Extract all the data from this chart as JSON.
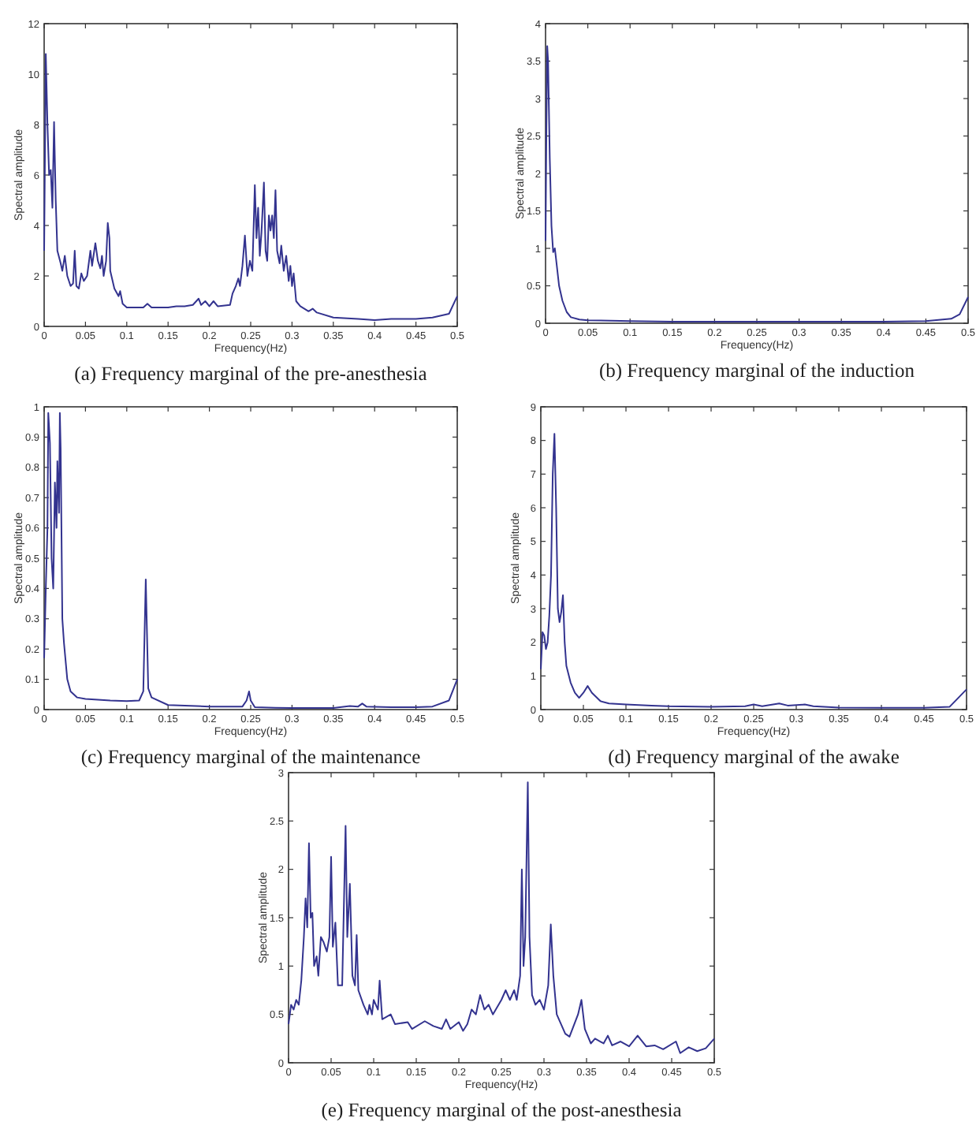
{
  "chart_data": [
    {
      "type": "line",
      "title": "(a) Frequency marginal of the pre-anesthesia",
      "xlabel": "Frequency(Hz)",
      "ylabel": "Spectral amplitude",
      "xlim": [
        0,
        0.5
      ],
      "xticks": [
        0,
        0.05,
        0.1,
        0.15,
        0.2,
        0.25,
        0.3,
        0.35,
        0.4,
        0.45,
        0.5
      ],
      "ylim": [
        0,
        12
      ],
      "yticks": [
        0,
        2,
        4,
        6,
        8,
        10,
        12
      ],
      "grid": false,
      "line_style": "solid",
      "color": "#33338f",
      "x": [
        0,
        0.002,
        0.004,
        0.006,
        0.008,
        0.01,
        0.012,
        0.014,
        0.016,
        0.02,
        0.022,
        0.025,
        0.028,
        0.032,
        0.035,
        0.037,
        0.039,
        0.042,
        0.045,
        0.048,
        0.052,
        0.056,
        0.058,
        0.062,
        0.065,
        0.068,
        0.07,
        0.072,
        0.075,
        0.077,
        0.079,
        0.08,
        0.085,
        0.09,
        0.092,
        0.095,
        0.1,
        0.12,
        0.125,
        0.13,
        0.15,
        0.16,
        0.17,
        0.18,
        0.187,
        0.19,
        0.195,
        0.2,
        0.205,
        0.21,
        0.225,
        0.228,
        0.232,
        0.235,
        0.237,
        0.24,
        0.243,
        0.246,
        0.249,
        0.252,
        0.255,
        0.257,
        0.259,
        0.261,
        0.263,
        0.266,
        0.268,
        0.27,
        0.272,
        0.274,
        0.276,
        0.278,
        0.28,
        0.282,
        0.285,
        0.287,
        0.29,
        0.293,
        0.296,
        0.298,
        0.3,
        0.302,
        0.305,
        0.31,
        0.32,
        0.325,
        0.33,
        0.35,
        0.38,
        0.4,
        0.42,
        0.45,
        0.47,
        0.49,
        0.5
      ],
      "values": [
        3,
        10.8,
        8,
        6,
        6.2,
        4.7,
        8.1,
        5,
        3,
        2.5,
        2.2,
        2.8,
        2,
        1.6,
        1.7,
        3,
        1.6,
        1.5,
        2.1,
        1.8,
        2,
        3,
        2.4,
        3.3,
        2.6,
        2.3,
        2.8,
        2,
        2.6,
        4.1,
        3.5,
        2.2,
        1.5,
        1.2,
        1.4,
        0.9,
        0.75,
        0.75,
        0.9,
        0.75,
        0.75,
        0.8,
        0.8,
        0.85,
        1.1,
        0.85,
        1,
        0.8,
        1,
        0.8,
        0.85,
        1.3,
        1.6,
        1.9,
        1.6,
        2.4,
        3.6,
        2,
        2.6,
        2.2,
        5.6,
        3.5,
        4.7,
        2.8,
        3.7,
        5.7,
        3,
        2.6,
        4.4,
        3.8,
        4.4,
        3.5,
        5.4,
        3,
        2.5,
        3.2,
        2.2,
        2.8,
        1.8,
        2.4,
        1.6,
        2.1,
        1,
        0.8,
        0.6,
        0.7,
        0.55,
        0.35,
        0.3,
        0.25,
        0.3,
        0.3,
        0.35,
        0.5,
        1.2
      ]
    },
    {
      "type": "line",
      "title": "(b) Frequency marginal of the induction",
      "xlabel": "Frequency(Hz)",
      "ylabel": "Spectral amplitude",
      "xlim": [
        0,
        0.5
      ],
      "xticks": [
        0,
        0.05,
        0.1,
        0.15,
        0.2,
        0.25,
        0.3,
        0.35,
        0.4,
        0.45,
        0.5
      ],
      "ylim": [
        0,
        4
      ],
      "yticks": [
        0,
        0.5,
        1,
        1.5,
        2,
        2.5,
        3,
        3.5,
        4
      ],
      "grid": false,
      "line_style": "solid",
      "color": "#33338f",
      "x": [
        0,
        0.001,
        0.002,
        0.003,
        0.005,
        0.007,
        0.009,
        0.011,
        0.013,
        0.016,
        0.02,
        0.025,
        0.03,
        0.04,
        0.05,
        0.1,
        0.15,
        0.2,
        0.22,
        0.25,
        0.3,
        0.35,
        0.4,
        0.45,
        0.48,
        0.49,
        0.5
      ],
      "values": [
        1.1,
        2.6,
        3.7,
        3.5,
        2.2,
        1.3,
        0.95,
        1,
        0.8,
        0.5,
        0.3,
        0.15,
        0.08,
        0.05,
        0.04,
        0.03,
        0.02,
        0.02,
        0.02,
        0.02,
        0.02,
        0.02,
        0.02,
        0.03,
        0.06,
        0.12,
        0.35
      ]
    },
    {
      "type": "line",
      "title": "(c) Frequency marginal of the maintenance",
      "xlabel": "Frequency(Hz)",
      "ylabel": "Spectral amplitude",
      "xlim": [
        0,
        0.5
      ],
      "xticks": [
        0,
        0.05,
        0.1,
        0.15,
        0.2,
        0.25,
        0.3,
        0.35,
        0.4,
        0.45,
        0.5
      ],
      "ylim": [
        0,
        1
      ],
      "yticks": [
        0,
        0.1,
        0.2,
        0.3,
        0.4,
        0.5,
        0.6,
        0.7,
        0.8,
        0.9,
        1
      ],
      "grid": false,
      "line_style": "solid",
      "color": "#33338f",
      "x": [
        0,
        0.002,
        0.004,
        0.005,
        0.007,
        0.009,
        0.011,
        0.013,
        0.015,
        0.016,
        0.018,
        0.019,
        0.02,
        0.022,
        0.024,
        0.028,
        0.032,
        0.04,
        0.05,
        0.08,
        0.1,
        0.115,
        0.12,
        0.123,
        0.126,
        0.13,
        0.15,
        0.2,
        0.24,
        0.245,
        0.248,
        0.25,
        0.255,
        0.28,
        0.3,
        0.35,
        0.37,
        0.38,
        0.385,
        0.39,
        0.42,
        0.45,
        0.47,
        0.49,
        0.5
      ],
      "values": [
        0.17,
        0.4,
        0.6,
        0.98,
        0.88,
        0.5,
        0.4,
        0.75,
        0.6,
        0.82,
        0.65,
        0.98,
        0.86,
        0.3,
        0.22,
        0.1,
        0.06,
        0.04,
        0.035,
        0.03,
        0.028,
        0.03,
        0.06,
        0.43,
        0.07,
        0.04,
        0.015,
        0.01,
        0.01,
        0.03,
        0.06,
        0.03,
        0.008,
        0.006,
        0.005,
        0.005,
        0.012,
        0.01,
        0.02,
        0.01,
        0.008,
        0.008,
        0.01,
        0.03,
        0.1
      ]
    },
    {
      "type": "line",
      "title": "(d) Frequency marginal of the awake",
      "xlabel": "Frequency(Hz)",
      "ylabel": "Spectral amplitude",
      "xlim": [
        0,
        0.5
      ],
      "xticks": [
        0,
        0.05,
        0.1,
        0.15,
        0.2,
        0.25,
        0.3,
        0.35,
        0.4,
        0.45,
        0.5
      ],
      "ylim": [
        0,
        9
      ],
      "yticks": [
        0,
        1,
        2,
        3,
        4,
        5,
        6,
        7,
        8,
        9
      ],
      "grid": false,
      "line_style": "solid",
      "color": "#33338f",
      "x": [
        0,
        0.002,
        0.004,
        0.006,
        0.008,
        0.01,
        0.012,
        0.014,
        0.016,
        0.018,
        0.02,
        0.022,
        0.024,
        0.026,
        0.028,
        0.03,
        0.035,
        0.04,
        0.045,
        0.05,
        0.055,
        0.06,
        0.07,
        0.08,
        0.1,
        0.13,
        0.15,
        0.2,
        0.24,
        0.25,
        0.26,
        0.28,
        0.29,
        0.31,
        0.32,
        0.35,
        0.4,
        0.45,
        0.48,
        0.5
      ],
      "values": [
        1.2,
        2.3,
        2.2,
        1.8,
        2,
        2.8,
        4,
        7,
        8.2,
        6,
        3,
        2.6,
        2.9,
        3.4,
        2,
        1.3,
        0.8,
        0.5,
        0.35,
        0.5,
        0.7,
        0.5,
        0.25,
        0.18,
        0.15,
        0.12,
        0.1,
        0.08,
        0.1,
        0.15,
        0.1,
        0.18,
        0.12,
        0.15,
        0.1,
        0.06,
        0.05,
        0.05,
        0.08,
        0.6
      ]
    },
    {
      "type": "line",
      "title": "(e) Frequency marginal of the post-anesthesia",
      "xlabel": "Frequency(Hz)",
      "ylabel": "Spectral amplitude",
      "xlim": [
        0,
        0.5
      ],
      "xticks": [
        0,
        0.05,
        0.1,
        0.15,
        0.2,
        0.25,
        0.3,
        0.35,
        0.4,
        0.45,
        0.5
      ],
      "ylim": [
        0,
        3
      ],
      "yticks": [
        0,
        0.5,
        1,
        1.5,
        2,
        2.5,
        3
      ],
      "grid": false,
      "line_style": "solid",
      "color": "#33338f",
      "x": [
        0,
        0.003,
        0.006,
        0.009,
        0.012,
        0.015,
        0.018,
        0.02,
        0.022,
        0.024,
        0.026,
        0.028,
        0.03,
        0.033,
        0.035,
        0.038,
        0.041,
        0.043,
        0.045,
        0.048,
        0.05,
        0.052,
        0.055,
        0.058,
        0.063,
        0.067,
        0.069,
        0.072,
        0.075,
        0.078,
        0.08,
        0.082,
        0.088,
        0.093,
        0.095,
        0.098,
        0.1,
        0.105,
        0.107,
        0.11,
        0.12,
        0.125,
        0.14,
        0.145,
        0.16,
        0.17,
        0.18,
        0.185,
        0.19,
        0.2,
        0.205,
        0.21,
        0.215,
        0.22,
        0.225,
        0.23,
        0.235,
        0.24,
        0.25,
        0.255,
        0.26,
        0.265,
        0.268,
        0.272,
        0.274,
        0.276,
        0.278,
        0.281,
        0.283,
        0.286,
        0.29,
        0.295,
        0.3,
        0.305,
        0.308,
        0.311,
        0.315,
        0.32,
        0.325,
        0.33,
        0.34,
        0.344,
        0.348,
        0.355,
        0.36,
        0.37,
        0.375,
        0.38,
        0.39,
        0.4,
        0.41,
        0.42,
        0.43,
        0.44,
        0.455,
        0.46,
        0.47,
        0.48,
        0.49,
        0.5
      ],
      "values": [
        0.4,
        0.6,
        0.55,
        0.65,
        0.6,
        0.85,
        1.3,
        1.7,
        1.4,
        2.27,
        1.5,
        1.55,
        1,
        1.1,
        0.9,
        1.3,
        1.25,
        1.2,
        1.15,
        1.3,
        2.13,
        1.2,
        1.45,
        0.8,
        0.8,
        2.45,
        1.3,
        1.85,
        0.9,
        0.8,
        1.32,
        0.75,
        0.6,
        0.5,
        0.6,
        0.5,
        0.65,
        0.55,
        0.85,
        0.45,
        0.5,
        0.4,
        0.42,
        0.35,
        0.43,
        0.38,
        0.35,
        0.45,
        0.35,
        0.42,
        0.33,
        0.4,
        0.55,
        0.5,
        0.7,
        0.55,
        0.6,
        0.5,
        0.65,
        0.75,
        0.65,
        0.75,
        0.65,
        0.9,
        2,
        1,
        1.3,
        2.9,
        1.3,
        0.7,
        0.6,
        0.65,
        0.55,
        0.8,
        1.43,
        0.9,
        0.5,
        0.4,
        0.3,
        0.27,
        0.5,
        0.65,
        0.35,
        0.2,
        0.25,
        0.2,
        0.28,
        0.18,
        0.22,
        0.17,
        0.28,
        0.17,
        0.18,
        0.14,
        0.22,
        0.1,
        0.16,
        0.12,
        0.15,
        0.25
      ]
    }
  ]
}
